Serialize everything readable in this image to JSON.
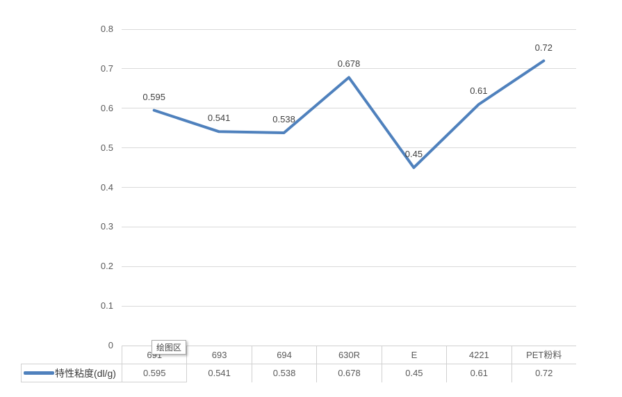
{
  "chart_data": {
    "type": "line",
    "title": "",
    "categories": [
      "691",
      "693",
      "694",
      "630R",
      "E",
      "4221",
      "PET粉料"
    ],
    "series": [
      {
        "name": "特性粘度(dl/g)",
        "values": [
          0.595,
          0.541,
          0.538,
          0.678,
          0.45,
          0.61,
          0.72
        ],
        "color": "#4F81BD"
      }
    ],
    "data_labels": [
      "0.595",
      "0.541",
      "0.538",
      "0.678",
      "0.45",
      "0.61",
      "0.72"
    ],
    "xlabel": "",
    "ylabel": "",
    "ylim": [
      0,
      0.8
    ],
    "ytick_labels": [
      "0.8",
      "0.7",
      "0.6",
      "0.5",
      "0.4",
      "0.3",
      "0.2",
      "0.1",
      "0"
    ],
    "grid": true,
    "gridline_color": "#D9D9D9",
    "legend_position": "bottom-left"
  },
  "legend": {
    "label": "特性粘度(dl/g)",
    "color": "#4F81BD"
  },
  "tooltip": {
    "text": "绘图区"
  },
  "data_table": {
    "header_row": [
      "691",
      "693",
      "694",
      "630R",
      "E",
      "4221",
      "PET粉料"
    ],
    "rows": [
      {
        "header": "特性粘度(dl/g)",
        "values": [
          "0.595",
          "0.541",
          "0.538",
          "0.678",
          "0.45",
          "0.61",
          "0.72"
        ]
      }
    ]
  }
}
